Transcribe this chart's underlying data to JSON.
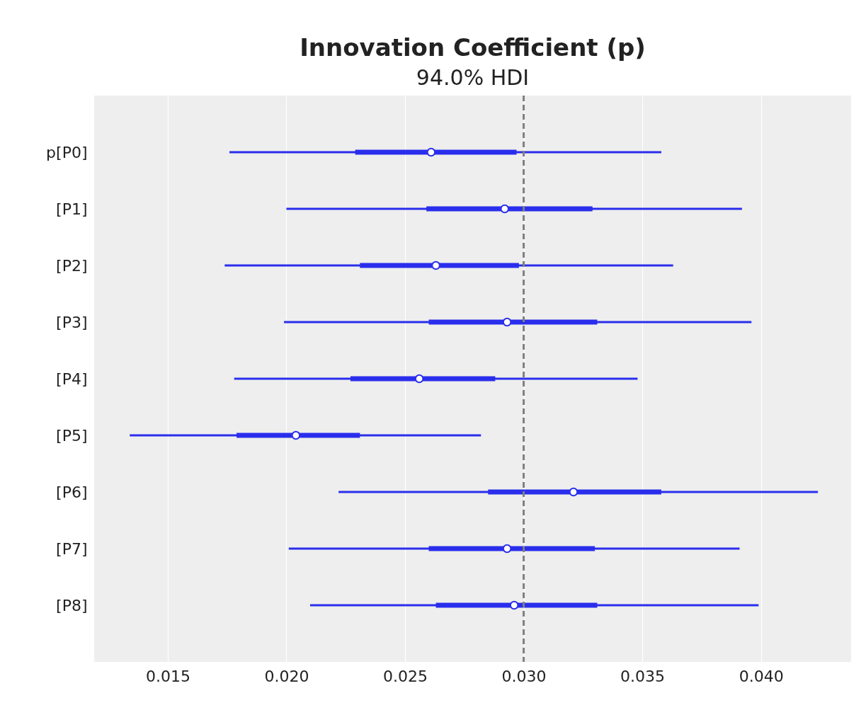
{
  "chart_data": {
    "type": "box",
    "orientation": "horizontal",
    "title": "Innovation Coefficient (p)",
    "subtitle": "94.0% HDI",
    "color": "#2a2eec",
    "marker": "circle",
    "grid": "x",
    "categories": [
      "p[P0]",
      "[P1]",
      "[P2]",
      "[P3]",
      "[P4]",
      "[P5]",
      "[P6]",
      "[P7]",
      "[P8]"
    ],
    "boxes": [
      {
        "low": 0.0176,
        "q1": 0.0229,
        "median": 0.0261,
        "q3": 0.0297,
        "high": 0.0358
      },
      {
        "low": 0.02,
        "q1": 0.0259,
        "median": 0.0292,
        "q3": 0.0329,
        "high": 0.0392
      },
      {
        "low": 0.0174,
        "q1": 0.0231,
        "median": 0.0263,
        "q3": 0.0298,
        "high": 0.0363
      },
      {
        "low": 0.0199,
        "q1": 0.026,
        "median": 0.0293,
        "q3": 0.0331,
        "high": 0.0396
      },
      {
        "low": 0.0178,
        "q1": 0.0227,
        "median": 0.0256,
        "q3": 0.0288,
        "high": 0.0348
      },
      {
        "low": 0.0134,
        "q1": 0.0179,
        "median": 0.0204,
        "q3": 0.0231,
        "high": 0.0282
      },
      {
        "low": 0.0222,
        "q1": 0.0285,
        "median": 0.0321,
        "q3": 0.0358,
        "high": 0.0424
      },
      {
        "low": 0.0201,
        "q1": 0.026,
        "median": 0.0293,
        "q3": 0.033,
        "high": 0.0391
      },
      {
        "low": 0.021,
        "q1": 0.0263,
        "median": 0.0296,
        "q3": 0.0331,
        "high": 0.0399
      }
    ],
    "xlim": [
      0.0119,
      0.0438
    ],
    "xticks": [
      {
        "value": 0.015,
        "label": "0.015"
      },
      {
        "value": 0.02,
        "label": "0.020"
      },
      {
        "value": 0.025,
        "label": "0.025"
      },
      {
        "value": 0.03,
        "label": "0.030"
      },
      {
        "value": 0.035,
        "label": "0.035"
      },
      {
        "value": 0.04,
        "label": "0.040"
      }
    ],
    "ref_lines": [
      {
        "axis": "x",
        "value": 0.03,
        "color": "#808080",
        "line_style": "dashed"
      }
    ]
  }
}
